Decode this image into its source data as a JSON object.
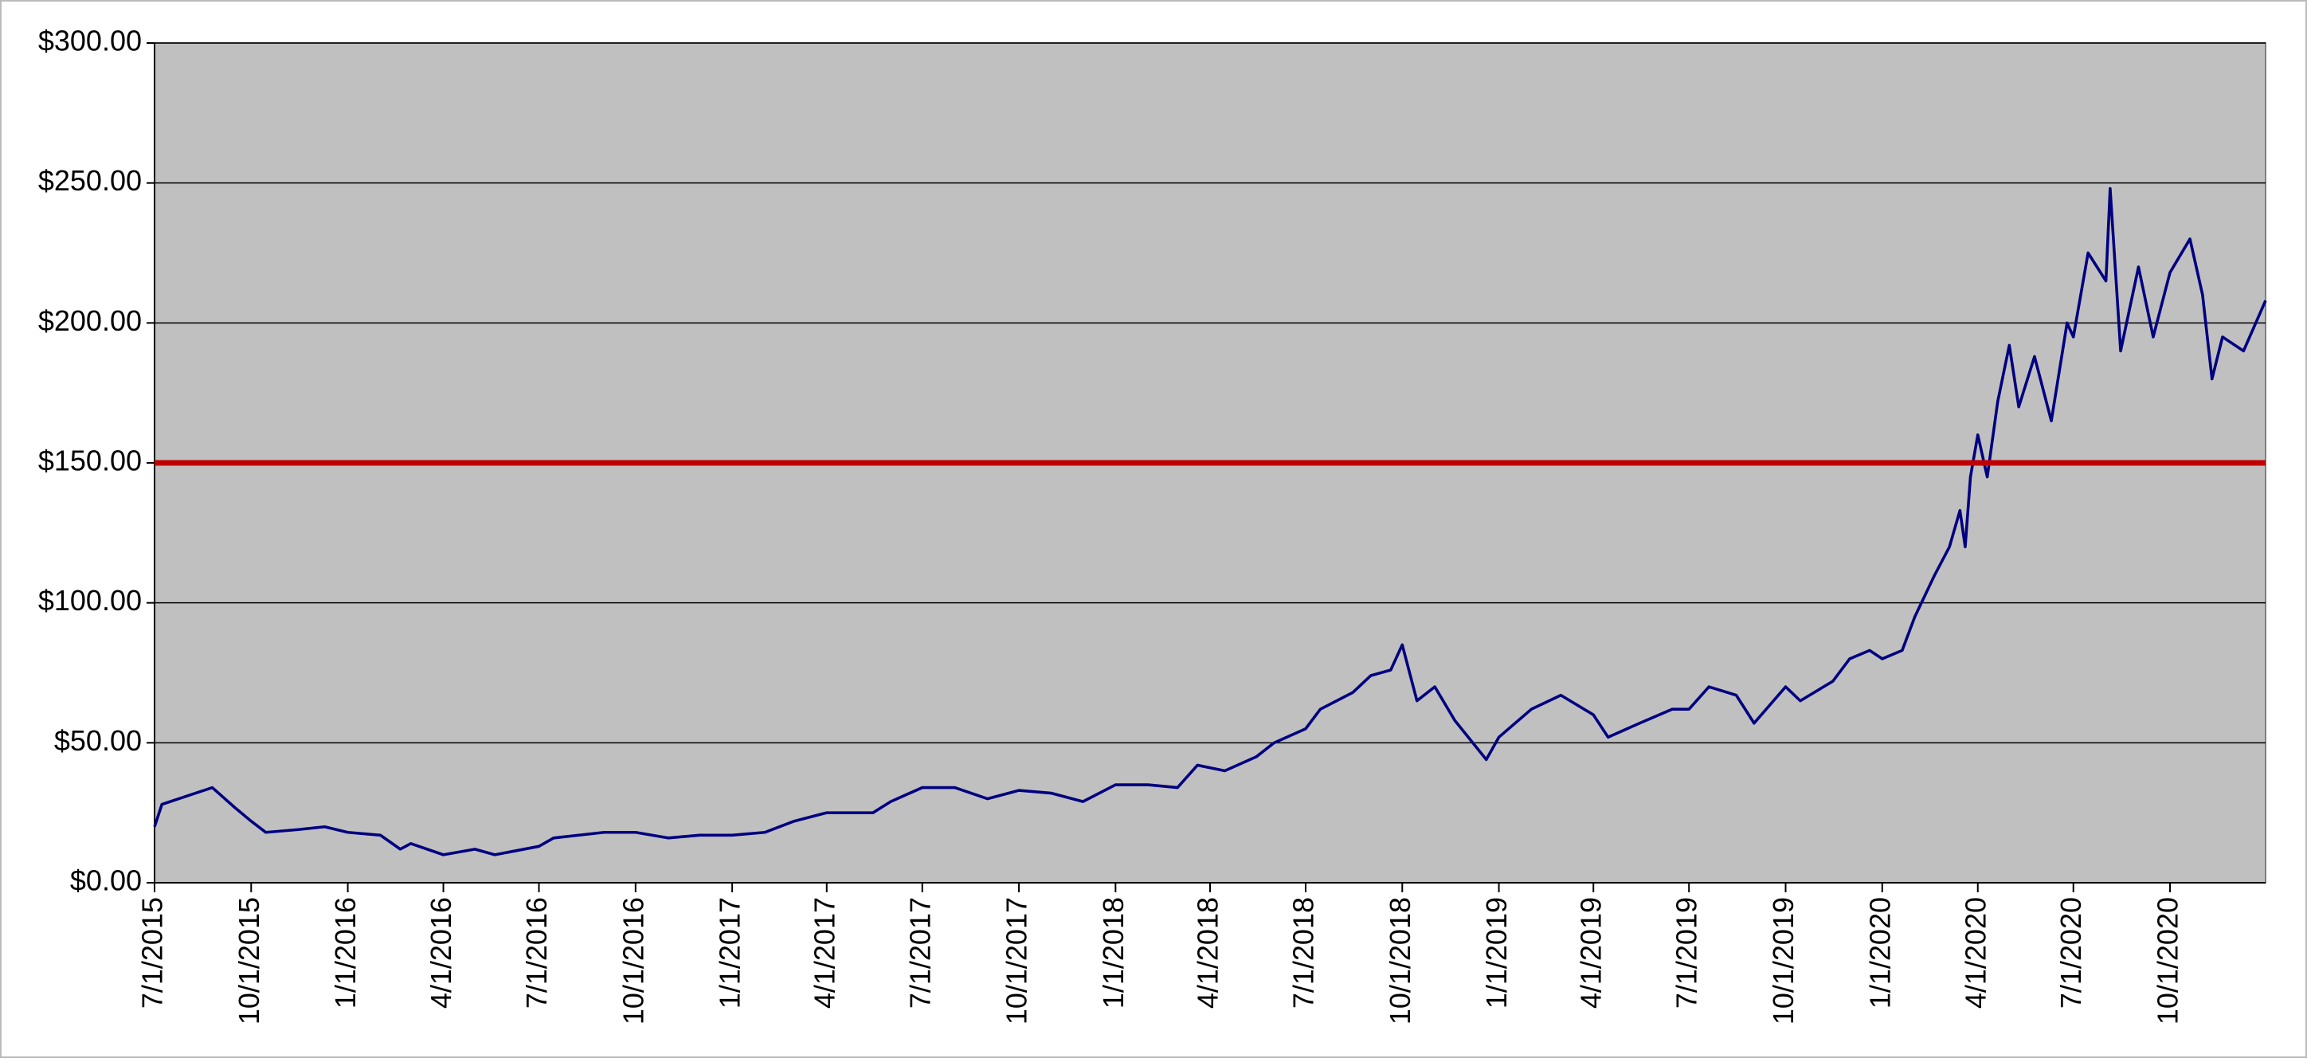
{
  "chart_data": {
    "type": "line",
    "xlim": [
      "2015-07-01",
      "2020-12-31"
    ],
    "xticks": [
      {
        "value": "2015-07-01",
        "label": "7/1/2015"
      },
      {
        "value": "2015-10-01",
        "label": "10/1/2015"
      },
      {
        "value": "2016-01-01",
        "label": "1/1/2016"
      },
      {
        "value": "2016-04-01",
        "label": "4/1/2016"
      },
      {
        "value": "2016-07-01",
        "label": "7/1/2016"
      },
      {
        "value": "2016-10-01",
        "label": "10/1/2016"
      },
      {
        "value": "2017-01-01",
        "label": "1/1/2017"
      },
      {
        "value": "2017-04-01",
        "label": "4/1/2017"
      },
      {
        "value": "2017-07-01",
        "label": "7/1/2017"
      },
      {
        "value": "2017-10-01",
        "label": "10/1/2017"
      },
      {
        "value": "2018-01-01",
        "label": "1/1/2018"
      },
      {
        "value": "2018-04-01",
        "label": "4/1/2018"
      },
      {
        "value": "2018-07-01",
        "label": "7/1/2018"
      },
      {
        "value": "2018-10-01",
        "label": "10/1/2018"
      },
      {
        "value": "2019-01-01",
        "label": "1/1/2019"
      },
      {
        "value": "2019-04-01",
        "label": "4/1/2019"
      },
      {
        "value": "2019-07-01",
        "label": "7/1/2019"
      },
      {
        "value": "2019-10-01",
        "label": "10/1/2019"
      },
      {
        "value": "2020-01-01",
        "label": "1/1/2020"
      },
      {
        "value": "2020-04-01",
        "label": "4/1/2020"
      },
      {
        "value": "2020-07-01",
        "label": "7/1/2020"
      },
      {
        "value": "2020-10-01",
        "label": "10/1/2020"
      }
    ],
    "ylim": [
      0,
      300
    ],
    "yticks": [
      {
        "value": 0,
        "label": "$0.00"
      },
      {
        "value": 50,
        "label": "$50.00"
      },
      {
        "value": 100,
        "label": "$100.00"
      },
      {
        "value": 150,
        "label": "$150.00"
      },
      {
        "value": 200,
        "label": "$200.00"
      },
      {
        "value": 250,
        "label": "$250.00"
      },
      {
        "value": 300,
        "label": "$300.00"
      }
    ],
    "grid": true,
    "background": "#c0c0c0",
    "reference_lines": [
      {
        "value": 150,
        "color": "#c00000"
      }
    ],
    "x": [
      "2015-07-01",
      "2015-07-08",
      "2015-08-01",
      "2015-08-25",
      "2015-09-15",
      "2015-10-01",
      "2015-10-15",
      "2015-11-15",
      "2015-12-10",
      "2016-01-01",
      "2016-02-01",
      "2016-02-20",
      "2016-03-01",
      "2016-04-01",
      "2016-05-01",
      "2016-05-20",
      "2016-07-01",
      "2016-07-15",
      "2016-09-01",
      "2016-10-01",
      "2016-11-01",
      "2016-12-01",
      "2017-01-01",
      "2017-02-01",
      "2017-03-01",
      "2017-04-01",
      "2017-05-15",
      "2017-06-01",
      "2017-07-01",
      "2017-08-01",
      "2017-09-01",
      "2017-10-01",
      "2017-11-01",
      "2017-12-01",
      "2018-01-01",
      "2018-02-01",
      "2018-03-01",
      "2018-03-20",
      "2018-04-15",
      "2018-05-15",
      "2018-06-01",
      "2018-07-01",
      "2018-07-15",
      "2018-08-15",
      "2018-09-01",
      "2018-09-20",
      "2018-10-01",
      "2018-10-15",
      "2018-11-01",
      "2018-11-20",
      "2018-12-20",
      "2019-01-01",
      "2019-02-01",
      "2019-03-01",
      "2019-04-01",
      "2019-04-15",
      "2019-05-15",
      "2019-06-15",
      "2019-07-01",
      "2019-07-20",
      "2019-08-15",
      "2019-09-01",
      "2019-10-01",
      "2019-10-15",
      "2019-11-15",
      "2019-12-01",
      "2019-12-20",
      "2020-01-01",
      "2020-01-20",
      "2020-02-01",
      "2020-02-20",
      "2020-03-05",
      "2020-03-15",
      "2020-03-20",
      "2020-03-25",
      "2020-04-01",
      "2020-04-10",
      "2020-04-20",
      "2020-05-01",
      "2020-05-10",
      "2020-05-25",
      "2020-06-10",
      "2020-06-25",
      "2020-07-01",
      "2020-07-15",
      "2020-08-01",
      "2020-08-05",
      "2020-08-15",
      "2020-09-01",
      "2020-09-15",
      "2020-10-01",
      "2020-10-20",
      "2020-11-01",
      "2020-11-10",
      "2020-11-20",
      "2020-12-10",
      "2020-12-31"
    ],
    "series": [
      {
        "color": "#000080",
        "values": [
          20,
          28,
          31,
          34,
          27,
          22,
          18,
          19,
          20,
          18,
          17,
          12,
          14,
          10,
          12,
          10,
          13,
          16,
          18,
          18,
          16,
          17,
          17,
          18,
          22,
          25,
          25,
          29,
          34,
          34,
          30,
          33,
          32,
          29,
          35,
          35,
          34,
          42,
          40,
          45,
          50,
          55,
          62,
          68,
          74,
          76,
          85,
          65,
          70,
          58,
          44,
          52,
          62,
          67,
          60,
          52,
          57,
          62,
          62,
          70,
          67,
          57,
          70,
          65,
          72,
          80,
          83,
          80,
          83,
          95,
          110,
          120,
          133,
          120,
          145,
          160,
          145,
          172,
          192,
          170,
          188,
          165,
          200,
          195,
          225,
          215,
          248,
          190,
          220,
          195,
          218,
          230,
          210,
          180,
          195,
          190,
          208
        ]
      }
    ]
  }
}
